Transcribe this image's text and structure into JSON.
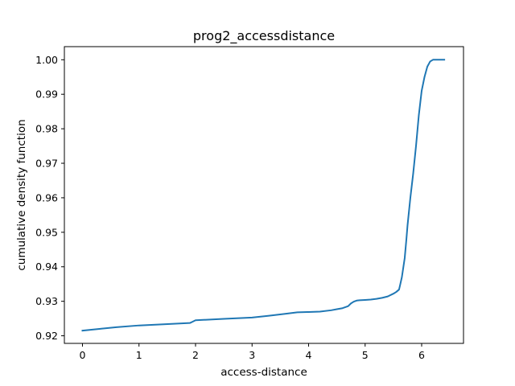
{
  "chart_data": {
    "type": "line",
    "title": "prog2_accessdistance",
    "xlabel": "access-distance",
    "ylabel": "cumulative density function",
    "xlim": [
      -0.32,
      6.74
    ],
    "ylim": [
      0.9178,
      1.0038
    ],
    "xticks": [
      0,
      1,
      2,
      3,
      4,
      5,
      6
    ],
    "yticks": [
      0.92,
      0.93,
      0.94,
      0.95,
      0.96,
      0.97,
      0.98,
      0.99,
      1.0
    ],
    "xtick_labels": [
      "0",
      "1",
      "2",
      "3",
      "4",
      "5",
      "6"
    ],
    "ytick_labels": [
      "0.92",
      "0.93",
      "0.94",
      "0.95",
      "0.96",
      "0.97",
      "0.98",
      "0.99",
      "1.00"
    ],
    "grid": false,
    "legend": "none",
    "series_color": "#1f77b4",
    "series": [
      {
        "x": [
          0.0,
          0.3,
          0.6,
          1.0,
          1.4,
          1.9,
          1.95,
          2.0,
          2.5,
          3.0,
          3.3,
          3.6,
          3.8,
          4.0,
          4.2,
          4.4,
          4.5,
          4.6,
          4.7,
          4.75,
          4.8,
          4.85,
          4.9,
          5.0,
          5.1,
          5.2,
          5.3,
          5.4,
          5.5,
          5.55,
          5.6,
          5.62,
          5.65,
          5.7,
          5.73,
          5.75,
          5.8,
          5.85,
          5.9,
          5.95,
          6.0,
          6.05,
          6.1,
          6.15,
          6.2,
          6.3,
          6.4
        ],
        "y": [
          0.9215,
          0.922,
          0.9225,
          0.923,
          0.9233,
          0.9237,
          0.9241,
          0.9245,
          0.9249,
          0.9253,
          0.9258,
          0.9264,
          0.9268,
          0.9269,
          0.927,
          0.9274,
          0.9277,
          0.928,
          0.9286,
          0.9294,
          0.9299,
          0.9302,
          0.9303,
          0.9304,
          0.9305,
          0.9307,
          0.931,
          0.9314,
          0.9322,
          0.9327,
          0.9334,
          0.9348,
          0.937,
          0.9425,
          0.948,
          0.952,
          0.96,
          0.967,
          0.975,
          0.984,
          0.991,
          0.995,
          0.998,
          0.9995,
          1.0,
          1.0,
          1.0
        ]
      }
    ]
  }
}
